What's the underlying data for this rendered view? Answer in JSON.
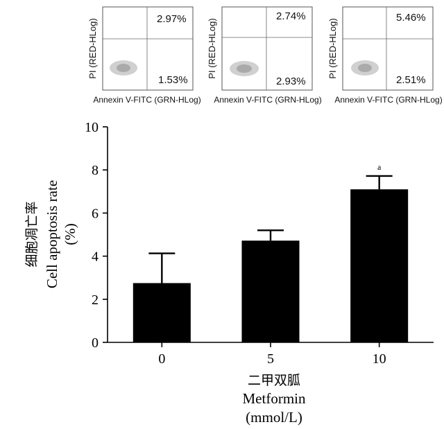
{
  "flow_panels": [
    {
      "y_label": "PI (RED-HLog)",
      "x_label": "Annexin V-FITC (GRN-HLog)",
      "upper_right_pct": "2.97%",
      "lower_right_pct": "1.53%"
    },
    {
      "y_label": "PI (RED-HLog)",
      "x_label": "Annexin V-FITC (GRN-HLog)",
      "upper_right_pct": "2.74%",
      "lower_right_pct": "2.93%"
    },
    {
      "y_label": "PI (RED-HLog)",
      "x_label": "Annexin V-FITC (GRN-HLog)",
      "upper_right_pct": "5.46%",
      "lower_right_pct": "2.51%"
    }
  ],
  "chart_data": {
    "type": "bar",
    "categories": [
      "0",
      "5",
      "10"
    ],
    "values": [
      2.75,
      4.72,
      7.1
    ],
    "errors": [
      1.38,
      0.48,
      0.62
    ],
    "annotations": [
      "",
      "",
      "a"
    ],
    "ylim": [
      0,
      10
    ],
    "yticks": [
      "0",
      "2",
      "4",
      "6",
      "8",
      "10"
    ],
    "ylabel_cn": "细胞凋亡率",
    "ylabel_en": "Cell apoptosis rate",
    "ylabel_unit": "(%)",
    "xlabel_cn": "二甲双胍",
    "xlabel_en": "Metformin",
    "xlabel_unit": "(mmol/L)",
    "bar_color": "#000000",
    "grid": false
  }
}
